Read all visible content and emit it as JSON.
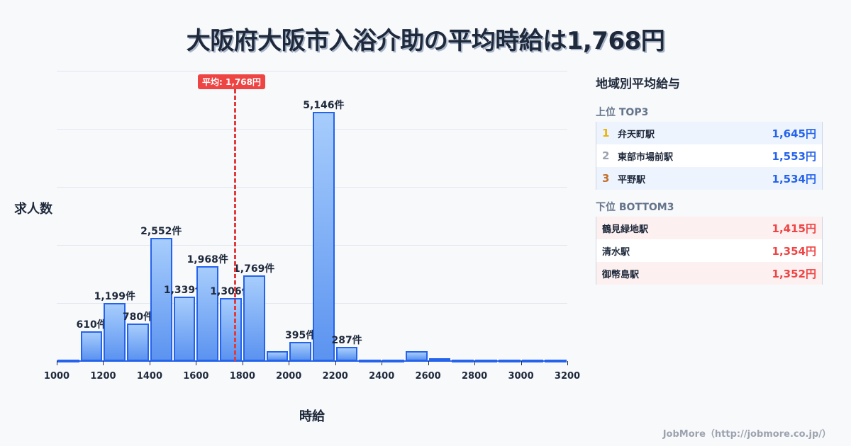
{
  "title": "大阪府大阪市入浴介助の平均時給は1,768円",
  "chart": {
    "ylabel": "求人数",
    "xlabel": "時給",
    "average_badge": "平均: 1,768円",
    "x_ticks": [
      "1000",
      "1200",
      "1400",
      "1600",
      "1800",
      "2000",
      "2200",
      "2400",
      "2600",
      "2800",
      "3000",
      "3200"
    ]
  },
  "chart_data": {
    "type": "bar",
    "title": "大阪府大阪市入浴介助の平均時給は1,768円",
    "xlabel": "時給",
    "ylabel": "求人数",
    "bin_width": 100,
    "categories": [
      "1000-1100",
      "1100-1200",
      "1200-1300",
      "1300-1400",
      "1400-1500",
      "1500-1600",
      "1600-1700",
      "1700-1800",
      "1800-1900",
      "1900-2000",
      "2000-2100",
      "2100-2200",
      "2200-2300",
      "2300-2400",
      "2400-2500",
      "2500-2600",
      "2600-2700",
      "2700-2800",
      "2800-2900",
      "2900-3000",
      "3000-3100",
      "3100-3200"
    ],
    "values": [
      10,
      610,
      1199,
      780,
      2552,
      1339,
      1968,
      1306,
      1769,
      205,
      395,
      5146,
      287,
      30,
      30,
      205,
      55,
      15,
      15,
      15,
      15,
      15
    ],
    "labeled_values": {
      "1100-1200": "610件",
      "1200-1300": "1,199件",
      "1300-1400": "780件",
      "1400-1500": "2,552件",
      "1500-1600": "1,339件",
      "1600-1700": "1,968件",
      "1700-1800": "1,306件",
      "1800-1900": "1,769件",
      "2000-2100": "395件",
      "2100-2200": "5,146件",
      "2200-2300": "287件"
    },
    "xlim": [
      1000,
      3200
    ],
    "ylim": [
      0,
      6000
    ],
    "grid": true,
    "annotations": [
      {
        "type": "vline",
        "x": 1768,
        "label": "平均: 1,768円",
        "color": "#ef4444"
      }
    ],
    "bar_color": "#5b93f0",
    "bar_edge_color": "#2563eb"
  },
  "panel": {
    "title": "地域別平均給与",
    "top_title": "上位 TOP3",
    "top": [
      {
        "rank": "1",
        "name": "弁天町駅",
        "value": "1,645円",
        "rank_color": "#eab308"
      },
      {
        "rank": "2",
        "name": "東部市場前駅",
        "value": "1,553円",
        "rank_color": "#9ca3af"
      },
      {
        "rank": "3",
        "name": "平野駅",
        "value": "1,534円",
        "rank_color": "#c2702a"
      }
    ],
    "bottom_title": "下位 BOTTOM3",
    "bottom": [
      {
        "name": "鶴見緑地駅",
        "value": "1,415円"
      },
      {
        "name": "清水駅",
        "value": "1,354円"
      },
      {
        "name": "御幣島駅",
        "value": "1,352円"
      }
    ]
  },
  "footer": "JobMore（http://jobmore.co.jp/）"
}
